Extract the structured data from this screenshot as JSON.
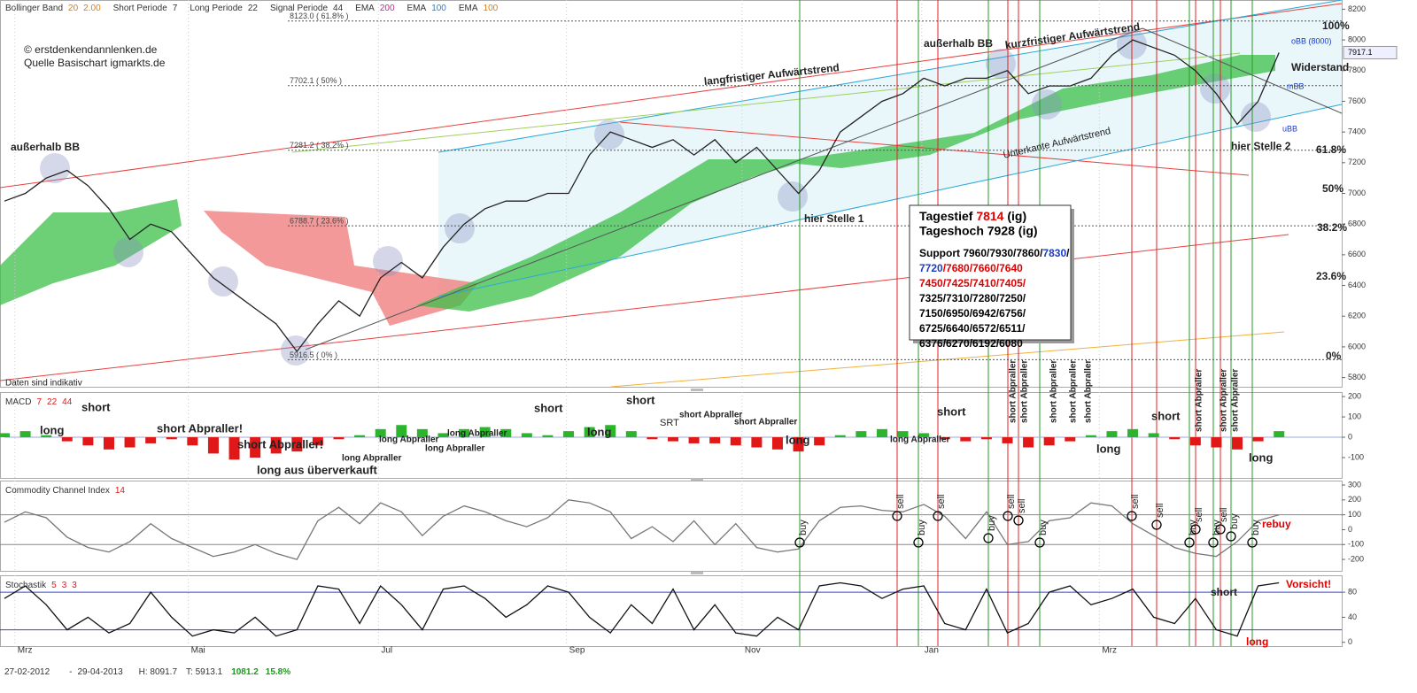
{
  "header": [
    {
      "name": "Bollinger Band",
      "params": [
        "20",
        "2.00"
      ],
      "color": "#e07a10"
    },
    {
      "name": "Short Periode",
      "params": [
        "7"
      ],
      "color": "#333"
    },
    {
      "name": "Long Periode",
      "params": [
        "22"
      ],
      "color": "#333"
    },
    {
      "name": "Signal Periode",
      "params": [
        "44"
      ],
      "color": "#333"
    },
    {
      "name": "EMA",
      "params": [
        "200"
      ],
      "color": "#b03090"
    },
    {
      "name": "EMA",
      "params": [
        "100"
      ],
      "color": "#2a7fd0"
    },
    {
      "name": "EMA",
      "params": [
        "100"
      ],
      "color": "#e07a10"
    }
  ],
  "info_box": {
    "low_label": "Tagestief",
    "low": "7814",
    "low_src": "(ig)",
    "high_line": "Tageshoch 7928 (ig)",
    "support": [
      [
        {
          "text": "Support 7960/7930/7860/",
          "color": "#000"
        },
        {
          "text": "7830",
          "color": "#1a3cc8"
        },
        {
          "text": "/",
          "color": "#000"
        }
      ],
      [
        {
          "text": "7720",
          "color": "#1a3cc8"
        },
        {
          "text": "/7680/7660/7640",
          "color": "#e00000"
        }
      ],
      [
        {
          "text": "7450/7425/7410/7405/",
          "color": "#e00000"
        }
      ],
      [
        {
          "text": "7325/7310/7280/7250/",
          "color": "#000"
        }
      ],
      [
        {
          "text": "7150/6950/6942/6756/",
          "color": "#000"
        }
      ],
      [
        {
          "text": "6725/6640/6572/6511/",
          "color": "#000"
        }
      ],
      [
        {
          "text": "6376/6270/6192/6080",
          "color": "#000"
        }
      ]
    ]
  },
  "chart_data": [
    {
      "type": "line",
      "x": [
        0,
        1,
        2,
        3,
        4,
        5,
        6,
        7,
        8,
        9,
        10,
        11,
        12,
        13,
        14,
        15,
        16,
        17,
        18,
        19,
        20,
        21,
        22,
        23,
        24,
        25,
        26,
        27,
        28,
        29,
        30,
        31,
        32,
        33,
        34,
        35,
        36,
        37,
        38,
        39,
        40,
        41,
        42,
        43,
        44,
        45,
        46,
        47,
        48,
        49,
        50,
        51,
        52,
        53,
        54,
        55,
        56,
        57,
        58,
        59,
        60,
        61
      ],
      "values": [
        6950,
        7000,
        7100,
        7150,
        7050,
        6900,
        6700,
        6800,
        6750,
        6600,
        6450,
        6350,
        6250,
        6150,
        5970,
        6150,
        6300,
        6200,
        6450,
        6550,
        6450,
        6650,
        6800,
        6900,
        6950,
        6950,
        7000,
        7000,
        7250,
        7400,
        7350,
        7300,
        7350,
        7250,
        7350,
        7200,
        7300,
        7150,
        7000,
        7150,
        7400,
        7500,
        7600,
        7650,
        7750,
        7700,
        7750,
        7750,
        7800,
        7650,
        7700,
        7700,
        7750,
        7900,
        8000,
        7950,
        7900,
        7800,
        7650,
        7450,
        7600,
        7917
      ],
      "color": "#222",
      "xlim": [
        0,
        64
      ],
      "ylim": [
        5740,
        8260
      ],
      "yticks": [
        5800,
        6000,
        6200,
        6400,
        6600,
        6800,
        7000,
        7200,
        7400,
        7600,
        7800,
        8000,
        8200
      ],
      "fib_levels": [
        {
          "value": 8123.0,
          "label": "8123.0 ( 61.8% )"
        },
        {
          "value": 7702.1,
          "label": "7702.1 ( 50% )"
        },
        {
          "value": 7281.2,
          "label": "7281.2 ( 38.2% )"
        },
        {
          "value": 6788.7,
          "label": "6788.7 ( 23.6% )"
        },
        {
          "value": 5916.5,
          "label": "5916.5 ( 0% )"
        }
      ],
      "last_value": 7917.1,
      "annotations": [
        "© erstdenkendannlenken.de",
        "Quelle Basischart igmarkts.de",
        "außerhalb BB",
        "außerhalb BB",
        "langfristiger Aufwärtstrend",
        "kurzfristiger Aufwärtstrend",
        "Unterkante Aufwärtstrend",
        "hier Stelle 1",
        "hier Stelle 2",
        "Widerstand",
        "Daten sind indikativ",
        "oBB (8000)",
        "mBB",
        "uBB",
        "100%",
        "61.8%",
        "50%",
        "38.2%",
        "23.6%",
        "0%"
      ]
    },
    {
      "type": "bar",
      "title": "MACD",
      "params": [
        "7",
        "22",
        "44"
      ],
      "x": [
        0,
        1,
        2,
        3,
        4,
        5,
        6,
        7,
        8,
        9,
        10,
        11,
        12,
        13,
        14,
        15,
        16,
        17,
        18,
        19,
        20,
        21,
        22,
        23,
        24,
        25,
        26,
        27,
        28,
        29,
        30,
        31,
        32,
        33,
        34,
        35,
        36,
        37,
        38,
        39,
        40,
        41,
        42,
        43,
        44,
        45,
        46,
        47,
        48,
        49,
        50,
        51,
        52,
        53,
        54,
        55,
        56,
        57,
        58,
        59,
        60,
        61
      ],
      "values": [
        20,
        30,
        10,
        -20,
        -40,
        -60,
        -50,
        -30,
        -10,
        -40,
        -80,
        -110,
        -100,
        -80,
        -70,
        -40,
        -10,
        10,
        40,
        60,
        40,
        20,
        40,
        50,
        40,
        20,
        10,
        30,
        50,
        60,
        30,
        -10,
        -20,
        -30,
        -30,
        -40,
        -50,
        -60,
        -70,
        -40,
        10,
        30,
        40,
        30,
        20,
        -10,
        -20,
        -10,
        -30,
        -50,
        -40,
        -20,
        10,
        30,
        40,
        20,
        -10,
        -40,
        -50,
        -60,
        -20,
        30
      ],
      "colors": {
        "up": "#2cb52c",
        "down": "#e01818"
      },
      "xlim": [
        0,
        64
      ],
      "ylim": [
        -200,
        222
      ],
      "yticks": [
        -100,
        0,
        100,
        200
      ],
      "annotations": [
        "long",
        "short",
        "short Abpraller!",
        "short Abpraller!",
        "long aus überverkauft",
        "long Abpraller",
        "long Abpraller",
        "long Abpraller",
        "long Abpraller",
        "short",
        "long",
        "short",
        "SRT",
        "short Abpraller",
        "short Abpraller",
        "long",
        "long Abpraller",
        "short",
        "short Abpraller",
        "short Abpraller",
        "short Abpraller",
        "short Abpraller",
        "short Abpraller",
        "long",
        "short",
        "short Abpraller",
        "short Abpraller",
        "short Abpraller",
        "long"
      ]
    },
    {
      "type": "line",
      "title": "Commodity Channel Index",
      "params": [
        "14"
      ],
      "x": [
        0,
        1,
        2,
        3,
        4,
        5,
        6,
        7,
        8,
        9,
        10,
        11,
        12,
        13,
        14,
        15,
        16,
        17,
        18,
        19,
        20,
        21,
        22,
        23,
        24,
        25,
        26,
        27,
        28,
        29,
        30,
        31,
        32,
        33,
        34,
        35,
        36,
        37,
        38,
        39,
        40,
        41,
        42,
        43,
        44,
        45,
        46,
        47,
        48,
        49,
        50,
        51,
        52,
        53,
        54,
        55,
        56,
        57,
        58,
        59,
        60,
        61
      ],
      "values": [
        50,
        120,
        80,
        -50,
        -120,
        -150,
        -80,
        40,
        -60,
        -120,
        -180,
        -150,
        -100,
        -160,
        -200,
        60,
        150,
        40,
        180,
        120,
        -40,
        90,
        160,
        120,
        60,
        20,
        80,
        200,
        180,
        120,
        -60,
        20,
        -80,
        60,
        -100,
        40,
        -120,
        -150,
        -130,
        60,
        150,
        160,
        130,
        120,
        170,
        90,
        -60,
        120,
        -100,
        -80,
        60,
        80,
        180,
        160,
        40,
        -40,
        -120,
        -160,
        -180,
        -80,
        60,
        100
      ],
      "color": "#777",
      "xlim": [
        0,
        64
      ],
      "ylim": [
        -277,
        330
      ],
      "yticks": [
        -200,
        -100,
        0,
        100,
        200,
        300
      ],
      "levels": [
        -100,
        100
      ],
      "level_color": "#888",
      "annotations": [
        "sell",
        "sell",
        "sell",
        "sell",
        "sell",
        "sell",
        "sell",
        "sell",
        "buy",
        "buy",
        "buy",
        "buy",
        "buy",
        "buy",
        "buy",
        "buy",
        "rebuy"
      ]
    },
    {
      "type": "line",
      "title": "Stochastik",
      "params": [
        "5",
        "3",
        "3"
      ],
      "x": [
        0,
        1,
        2,
        3,
        4,
        5,
        6,
        7,
        8,
        9,
        10,
        11,
        12,
        13,
        14,
        15,
        16,
        17,
        18,
        19,
        20,
        21,
        22,
        23,
        24,
        25,
        26,
        27,
        28,
        29,
        30,
        31,
        32,
        33,
        34,
        35,
        36,
        37,
        38,
        39,
        40,
        41,
        42,
        43,
        44,
        45,
        46,
        47,
        48,
        49,
        50,
        51,
        52,
        53,
        54,
        55,
        56,
        57,
        58,
        59,
        60,
        61
      ],
      "values": [
        70,
        90,
        60,
        20,
        40,
        15,
        30,
        80,
        40,
        10,
        20,
        15,
        40,
        10,
        20,
        90,
        85,
        30,
        90,
        60,
        20,
        85,
        90,
        70,
        40,
        60,
        90,
        80,
        40,
        15,
        60,
        30,
        85,
        20,
        60,
        15,
        10,
        40,
        20,
        90,
        95,
        90,
        70,
        85,
        90,
        30,
        20,
        85,
        15,
        30,
        80,
        90,
        60,
        70,
        85,
        40,
        30,
        70,
        20,
        10,
        90,
        95
      ],
      "color": "#111",
      "xlim": [
        0,
        64
      ],
      "ylim": [
        -6,
        107
      ],
      "yticks": [
        0,
        40,
        80
      ],
      "levels": [
        20,
        80
      ],
      "level_color": "#3344cc",
      "xticks": [
        {
          "value": 0.5,
          "label": "Mrz"
        },
        {
          "value": 8.8,
          "label": "Mai"
        },
        {
          "value": 17.9,
          "label": "Jul"
        },
        {
          "value": 26.9,
          "label": "Sep"
        },
        {
          "value": 35.3,
          "label": "Nov"
        },
        {
          "value": 43.9,
          "label": "Jan"
        },
        {
          "value": 52.4,
          "label": "Mrz"
        }
      ],
      "annotations": [
        "short",
        "long",
        "Vorsicht!"
      ]
    }
  ],
  "footer": {
    "from": "27-02-2012",
    "sep": "-",
    "to": "29-04-2013",
    "high": "H: 8091.7",
    "low": "T: 5913.1",
    "change": "1081.2",
    "change_pct": "15.8%"
  }
}
